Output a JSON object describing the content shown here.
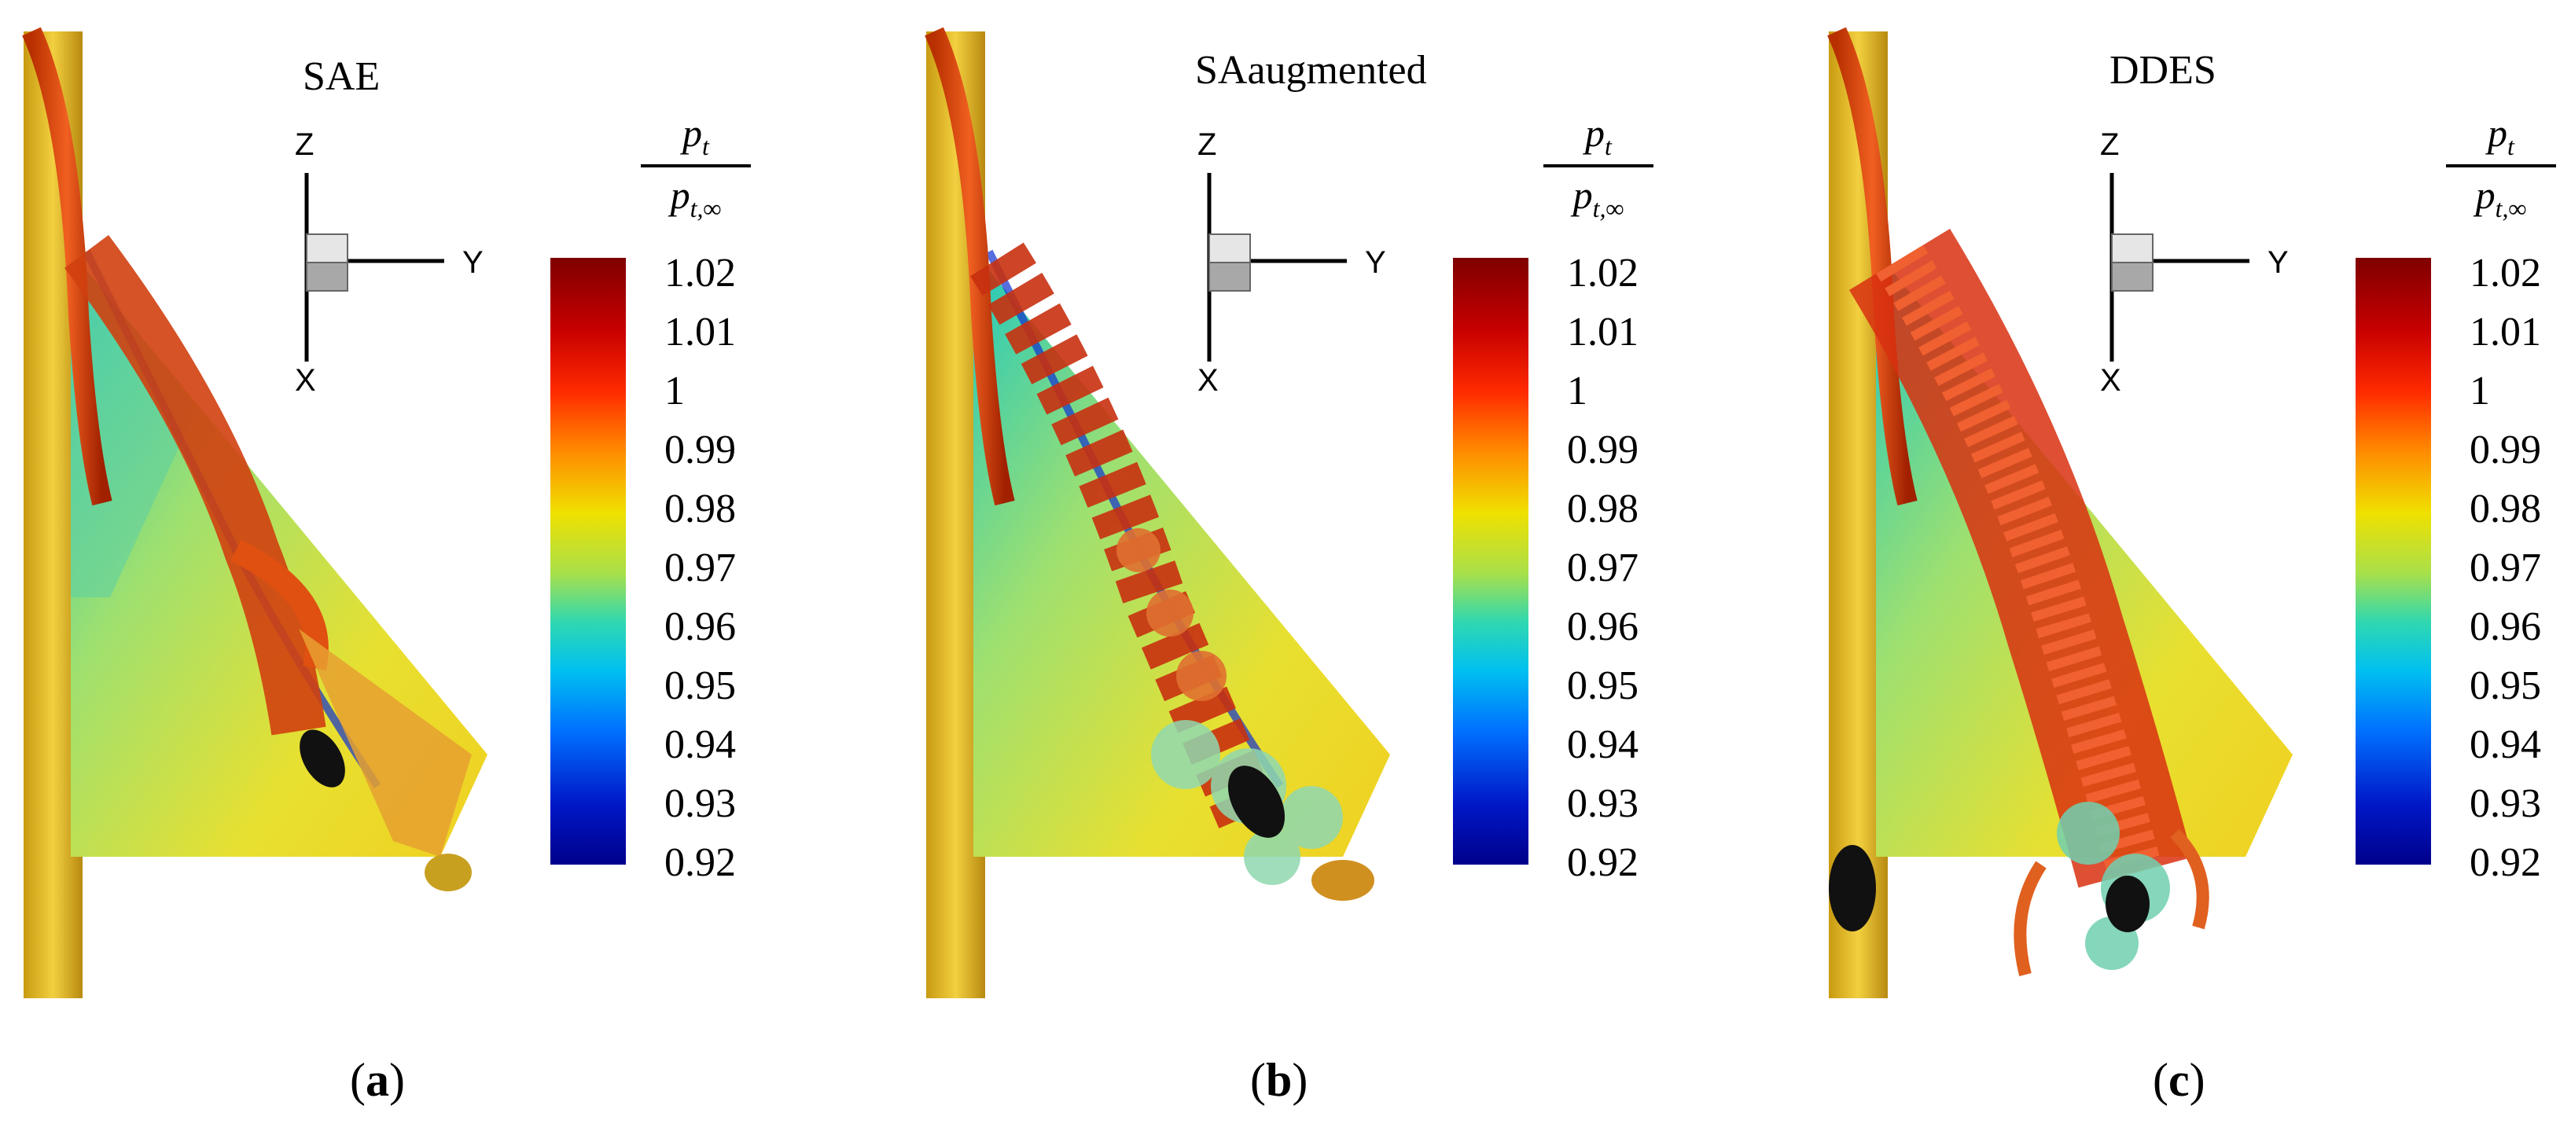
{
  "figure": {
    "panels": [
      {
        "id": "a",
        "title": "SAE",
        "caption_letter": "a"
      },
      {
        "id": "b",
        "title": "SAaugmented",
        "caption_letter": "b"
      },
      {
        "id": "c",
        "title": "DDES",
        "caption_letter": "c"
      }
    ],
    "axes": {
      "z": "Z",
      "y": "Y",
      "x": "X"
    },
    "colorbar": {
      "numerator": "p",
      "numerator_sub": "t",
      "denominator": "p",
      "denominator_sub": "t,∞",
      "ticks": [
        "1.02",
        "1.01",
        "1",
        "0.99",
        "0.98",
        "0.97",
        "0.96",
        "0.95",
        "0.94",
        "0.93",
        "0.92"
      ],
      "colors": [
        "#7f0000",
        "#d40000",
        "#ff3000",
        "#ff9a00",
        "#f2e600",
        "#8fe050",
        "#00d8c8",
        "#0090ff",
        "#0030e0",
        "#00008f"
      ]
    }
  }
}
